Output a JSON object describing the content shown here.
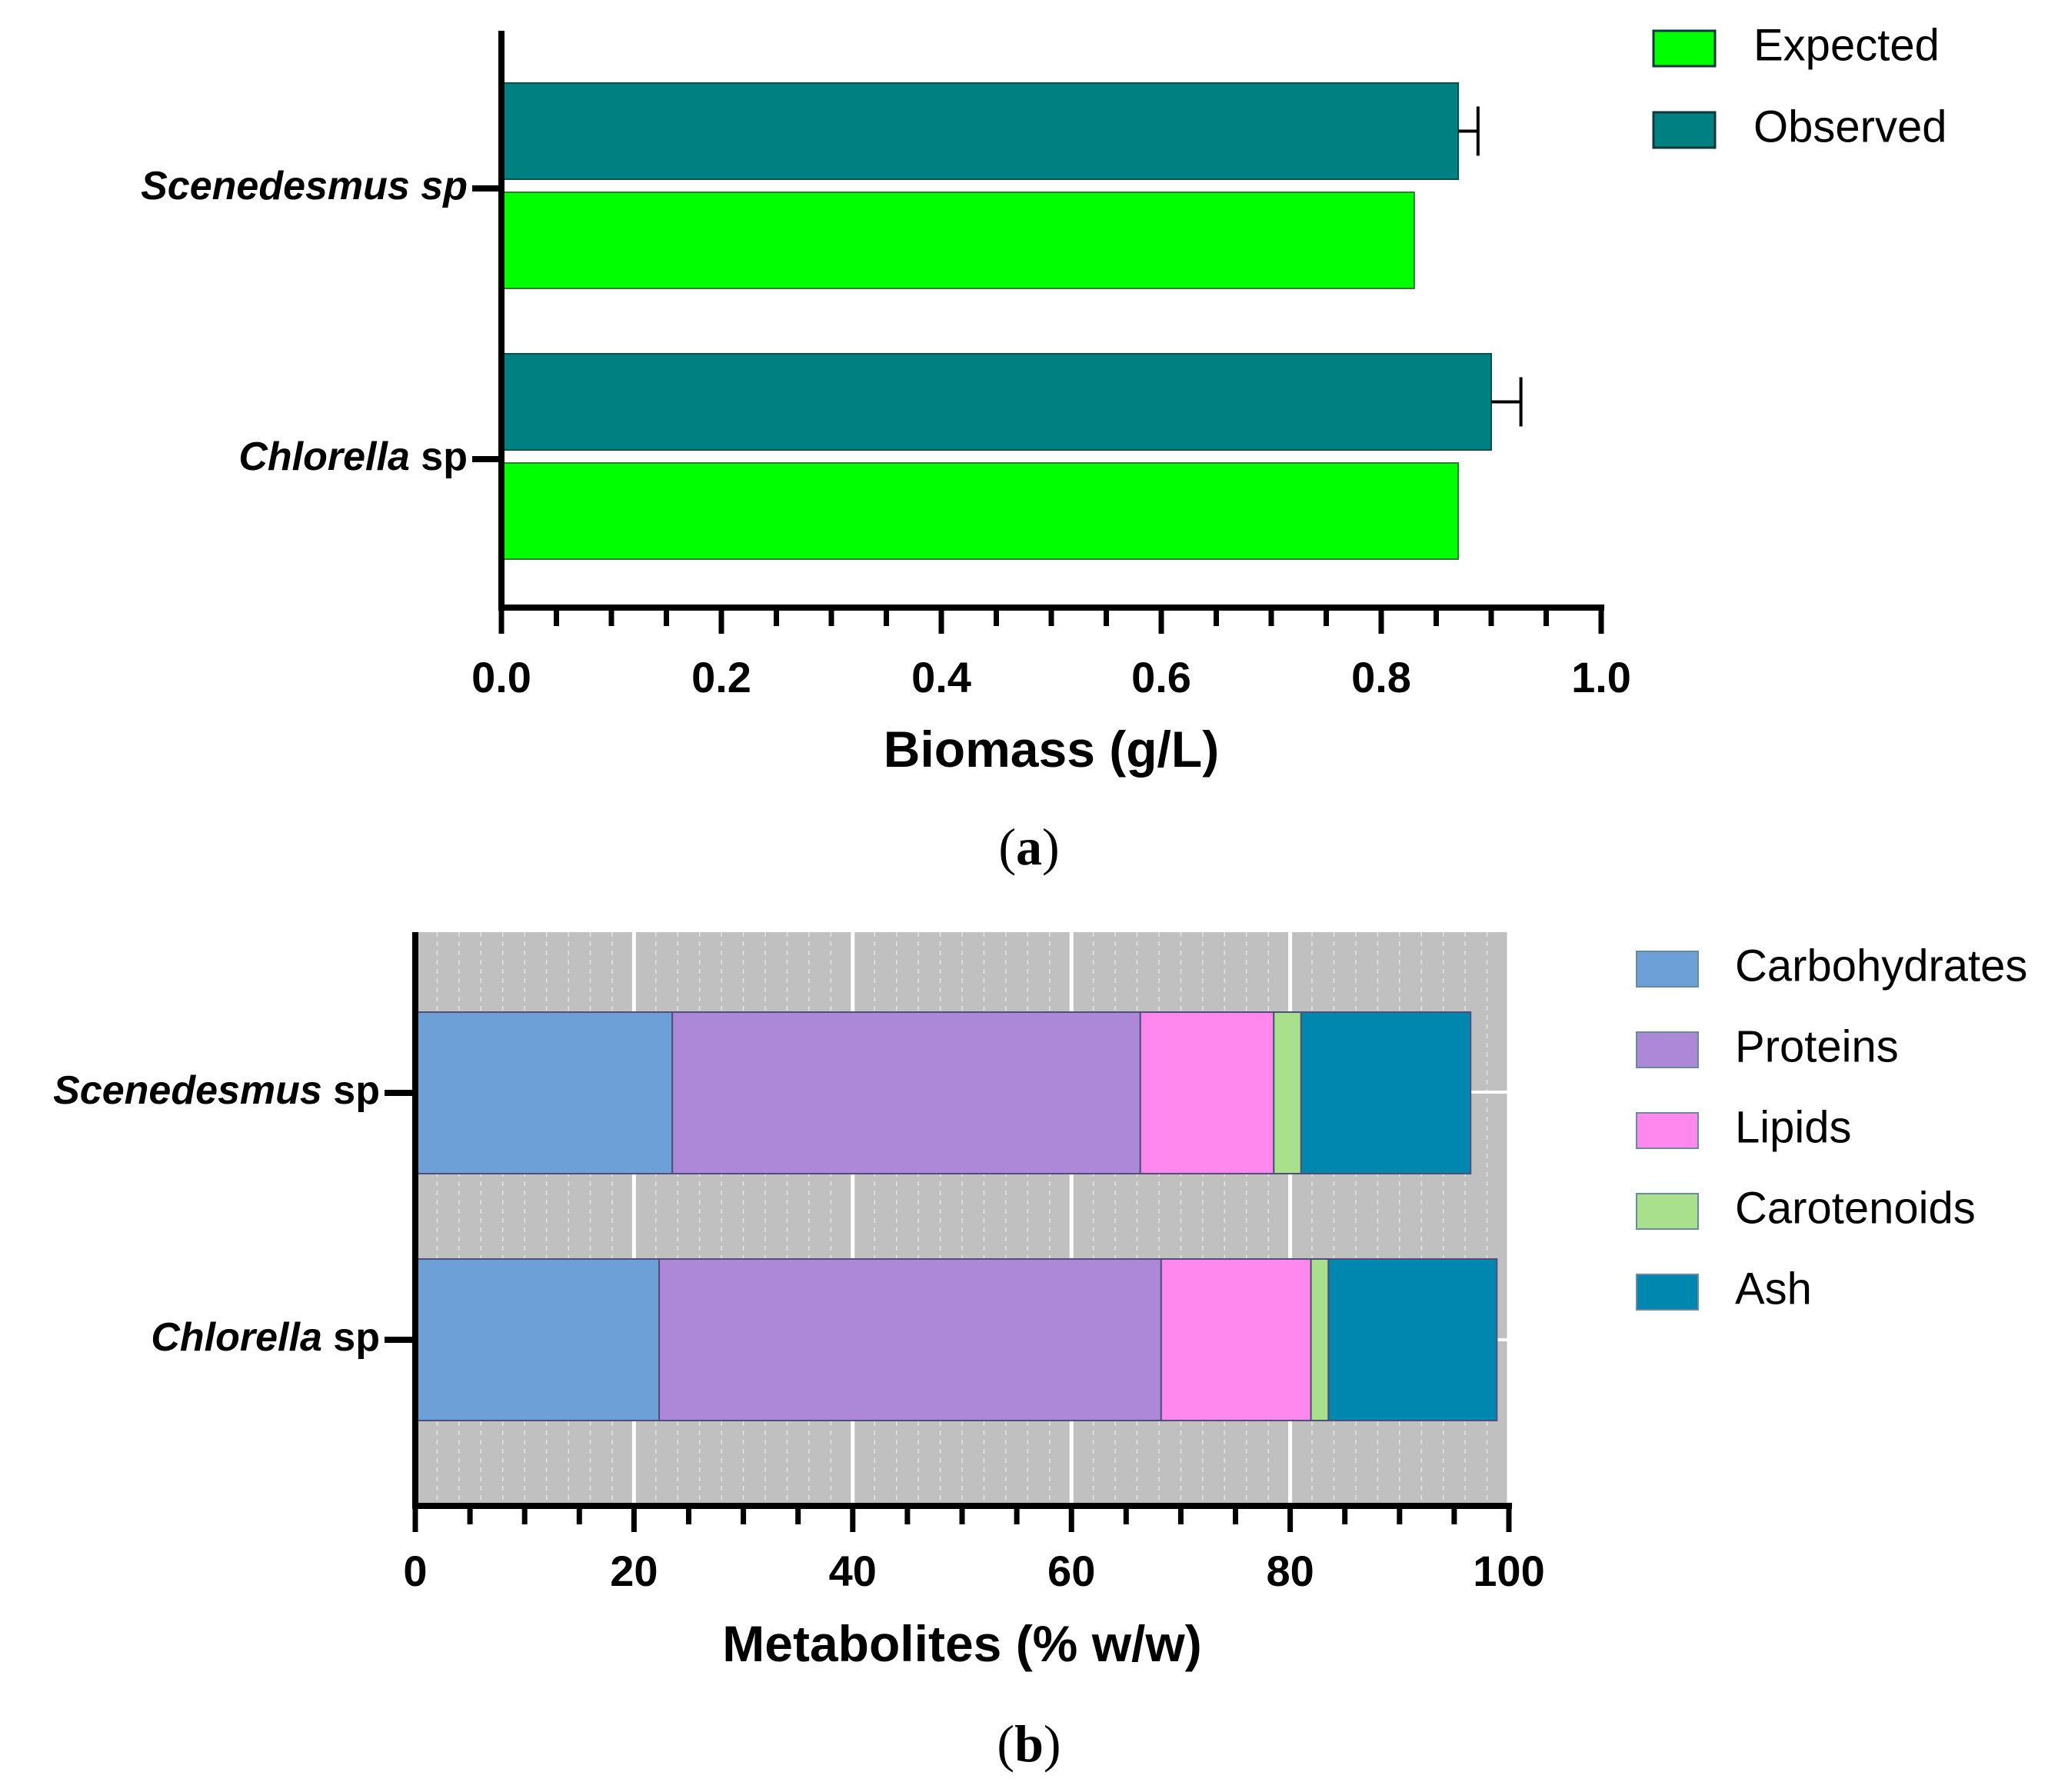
{
  "chart_data": [
    {
      "panel": "(a)",
      "type": "bar",
      "orientation": "horizontal",
      "categories": [
        "Scenedesmus sp",
        "Chlorella sp"
      ],
      "category_labels": [
        {
          "italic": "Scenedesmus sp",
          "normal": ""
        },
        {
          "italic": "Chlorella",
          "normal": " sp"
        }
      ],
      "series": [
        {
          "name": "Observed",
          "color": "#008080",
          "values": [
            0.87,
            0.9
          ],
          "errors": [
            0.018,
            0.027
          ]
        },
        {
          "name": "Expected",
          "color": "#00ff00",
          "values": [
            0.83,
            0.87
          ]
        }
      ],
      "legend": [
        {
          "name": "Expected",
          "color": "#00ff00"
        },
        {
          "name": "Observed",
          "color": "#008080"
        }
      ],
      "legend_position": "top-right",
      "xlabel": "Biomass (g/L)",
      "ylabel": "",
      "xlim": [
        0,
        1.0
      ],
      "xticks": [
        "0.0",
        "0.2",
        "0.4",
        "0.6",
        "0.8",
        "1.0"
      ],
      "grid": false
    },
    {
      "panel": "(b)",
      "type": "bar",
      "orientation": "horizontal",
      "stacked": true,
      "categories": [
        "Scenedesmus sp",
        "Chlorella sp"
      ],
      "category_labels": [
        {
          "italic": "Scenedesmus",
          "normal": " sp"
        },
        {
          "italic": "Chlorella",
          "normal": " sp"
        }
      ],
      "series": [
        {
          "name": "Carbohydrates",
          "color": "#6ca0d6",
          "values": [
            23.5,
            22.3
          ]
        },
        {
          "name": "Proteins",
          "color": "#ae88d8",
          "values": [
            42.8,
            45.9
          ]
        },
        {
          "name": "Lipids",
          "color": "#ff88ee",
          "values": [
            12.2,
            13.7
          ]
        },
        {
          "name": "Carotenoids",
          "color": "#a8e08c",
          "values": [
            2.5,
            1.6
          ]
        },
        {
          "name": "Ash",
          "color": "#0087b0",
          "values": [
            15.5,
            15.4
          ]
        }
      ],
      "legend_position": "top-right",
      "xlabel": "Metabolites (% w/w)",
      "ylabel": "",
      "xlim": [
        0,
        100
      ],
      "xticks": [
        "0",
        "20",
        "40",
        "60",
        "80",
        "100"
      ],
      "grid": true,
      "background": "#c0c0c0"
    }
  ]
}
